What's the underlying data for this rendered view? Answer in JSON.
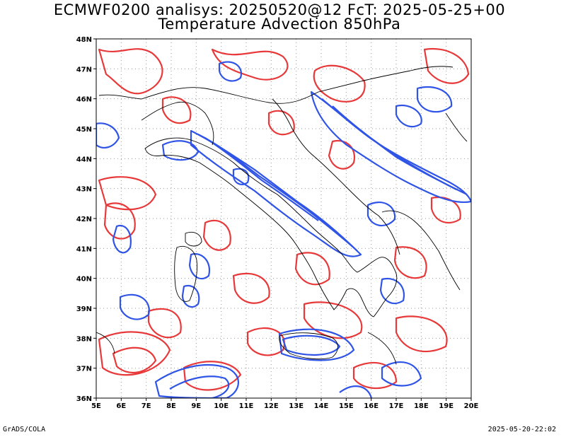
{
  "header": {
    "line1": "ECMWF0200 analisys: 20250520@12 FcT: 2025-05-25+00",
    "line2": "Temperature Advection 850hPa"
  },
  "map": {
    "lat_labels": [
      "48N",
      "47N",
      "46N",
      "45N",
      "44N",
      "43N",
      "42N",
      "41N",
      "40N",
      "39N",
      "38N",
      "37N",
      "36N"
    ],
    "lon_labels": [
      "5E",
      "6E",
      "7E",
      "8E",
      "9E",
      "10E",
      "11E",
      "12E",
      "13E",
      "14E",
      "15E",
      "16E",
      "17E",
      "18E",
      "19E",
      "20E"
    ],
    "lat_range": [
      36,
      48
    ],
    "lon_range": [
      5,
      20
    ],
    "grid": "dotted",
    "colors": {
      "positive": "#e8393a",
      "negative": "#2f54e6",
      "coastline": "#000000",
      "grid": "#999999"
    }
  },
  "footer": {
    "left": "GrADS/COLA",
    "right": "2025-05-20-22:02"
  }
}
